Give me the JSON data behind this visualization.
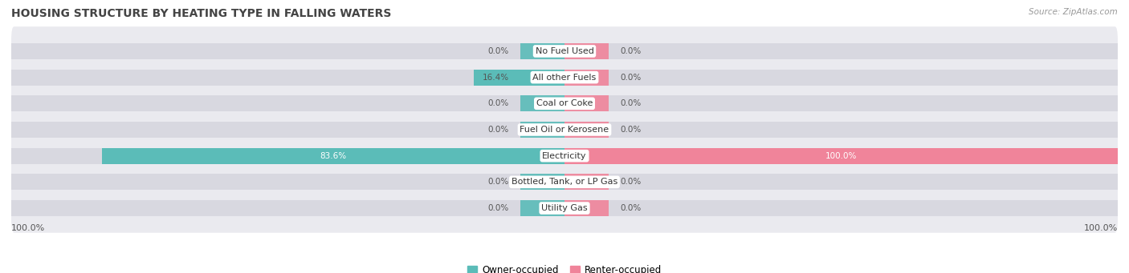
{
  "title": "HOUSING STRUCTURE BY HEATING TYPE IN FALLING WATERS",
  "source": "Source: ZipAtlas.com",
  "categories": [
    "Utility Gas",
    "Bottled, Tank, or LP Gas",
    "Electricity",
    "Fuel Oil or Kerosene",
    "Coal or Coke",
    "All other Fuels",
    "No Fuel Used"
  ],
  "owner_values": [
    0.0,
    0.0,
    83.6,
    0.0,
    0.0,
    16.4,
    0.0
  ],
  "renter_values": [
    0.0,
    0.0,
    100.0,
    0.0,
    0.0,
    0.0,
    0.0
  ],
  "owner_color": "#5bbcb8",
  "renter_color": "#f0849a",
  "owner_label": "Owner-occupied",
  "renter_label": "Renter-occupied",
  "bar_bg_color": "#d8d8e0",
  "row_bg_color": "#eaeaef",
  "text_color_dark": "#555555",
  "text_color_white": "#ffffff",
  "label_bg_color": "#ffffff",
  "figsize": [
    14.06,
    3.41
  ],
  "dpi": 100
}
